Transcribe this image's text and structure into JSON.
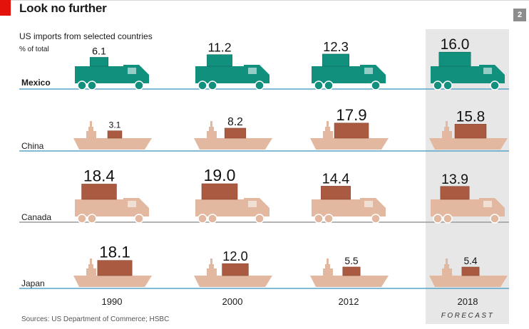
{
  "header": {
    "title": "Look no further",
    "subtitle": "US imports from selected countries",
    "unit": "% of total",
    "page_number": "2"
  },
  "footer": {
    "sources": "Sources: US Department of Commerce; HSBC"
  },
  "colors": {
    "mexico": "#12907e",
    "china": "#e2b9a0",
    "canada": "#e2b9a0",
    "japan": "#e2b9a0",
    "cargo": "#a95a40",
    "waterline": "#5aa3c9",
    "road": "#9b9b9b",
    "forecast_band": "#e7e7e7",
    "accent": "#e3120b"
  },
  "chart_data": {
    "type": "pictogram",
    "title": "Look no further",
    "subtitle": "US imports from selected countries",
    "unit": "% of total",
    "categories": [
      "1990",
      "2000",
      "2012",
      "2018"
    ],
    "forecast_note": "FORECAST",
    "forecast_category": "2018",
    "series": [
      {
        "name": "Mexico",
        "icon": "truck-icon",
        "values": [
          6.1,
          11.2,
          12.3,
          16.0
        ],
        "labels": [
          "6.1",
          "11.2",
          "12.3",
          "16.0"
        ]
      },
      {
        "name": "China",
        "icon": "ship-icon",
        "values": [
          3.1,
          8.2,
          17.9,
          15.8
        ],
        "labels": [
          "3.1",
          "8.2",
          "17.9",
          "15.8"
        ]
      },
      {
        "name": "Canada",
        "icon": "truck-icon",
        "values": [
          18.4,
          19.0,
          14.4,
          13.9
        ],
        "labels": [
          "18.4",
          "19.0",
          "14.4",
          "13.9"
        ]
      },
      {
        "name": "Japan",
        "icon": "ship-icon",
        "values": [
          18.1,
          12.0,
          5.5,
          5.4
        ],
        "labels": [
          "18.1",
          "12.0",
          "5.5",
          "5.4"
        ]
      }
    ]
  }
}
